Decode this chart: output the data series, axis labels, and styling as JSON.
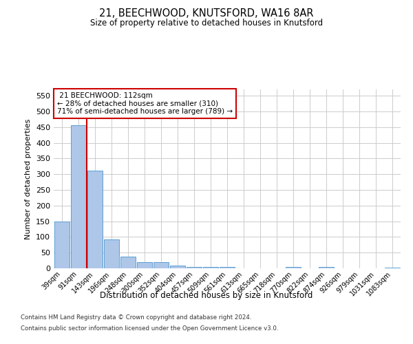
{
  "title1": "21, BEECHWOOD, KNUTSFORD, WA16 8AR",
  "title2": "Size of property relative to detached houses in Knutsford",
  "xlabel": "Distribution of detached houses by size in Knutsford",
  "ylabel": "Number of detached properties",
  "categories": [
    "39sqm",
    "91sqm",
    "143sqm",
    "196sqm",
    "248sqm",
    "300sqm",
    "352sqm",
    "404sqm",
    "457sqm",
    "509sqm",
    "561sqm",
    "613sqm",
    "665sqm",
    "718sqm",
    "770sqm",
    "822sqm",
    "874sqm",
    "926sqm",
    "979sqm",
    "1031sqm",
    "1083sqm"
  ],
  "values": [
    148,
    457,
    311,
    92,
    38,
    19,
    20,
    9,
    5,
    5,
    5,
    0,
    0,
    0,
    4,
    0,
    4,
    0,
    0,
    0,
    3
  ],
  "bar_color": "#aec6e8",
  "bar_edge_color": "#5a9fd4",
  "property_line_x": 1.5,
  "property_sqm": 112,
  "property_name": "21 BEECHWOOD",
  "pct_smaller": 28,
  "n_smaller": 310,
  "pct_larger_semi": 71,
  "n_larger_semi": 789,
  "annotation_box_color": "#ffffff",
  "annotation_box_edge_color": "#cc0000",
  "red_line_color": "#cc0000",
  "ylim": [
    0,
    570
  ],
  "yticks": [
    0,
    50,
    100,
    150,
    200,
    250,
    300,
    350,
    400,
    450,
    500,
    550
  ],
  "footer1": "Contains HM Land Registry data © Crown copyright and database right 2024.",
  "footer2": "Contains public sector information licensed under the Open Government Licence v3.0.",
  "background_color": "#ffffff",
  "grid_color": "#cccccc"
}
